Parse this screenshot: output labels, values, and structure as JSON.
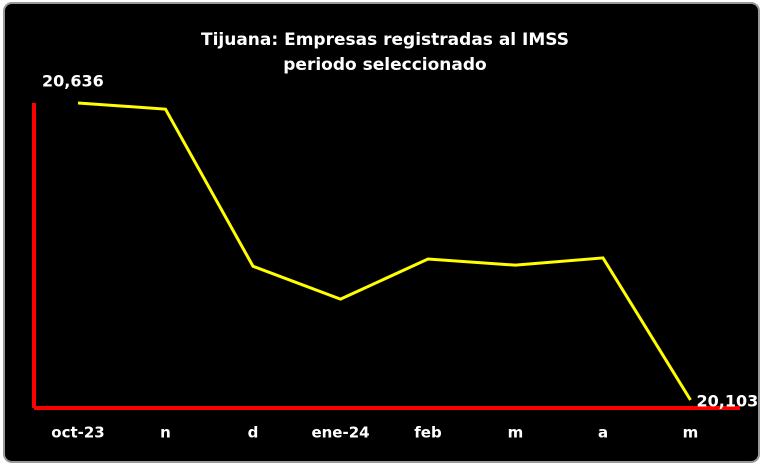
{
  "chart_data": {
    "type": "line",
    "title": "Tijuana: Empresas registradas al IMSS",
    "subtitle": "periodo seleccionado",
    "categories": [
      "oct-23",
      "n",
      "d",
      "ene-24",
      "feb",
      "m",
      "a",
      "m"
    ],
    "series": [
      {
        "color": "#ffff00",
        "values": [
          20636,
          20625,
          20343,
          20284,
          20356,
          20345,
          20358,
          20103
        ],
        "value_labels": [
          "20,636",
          null,
          null,
          null,
          null,
          null,
          null,
          "20,103"
        ]
      }
    ],
    "axis_color": "#ff0000"
  }
}
